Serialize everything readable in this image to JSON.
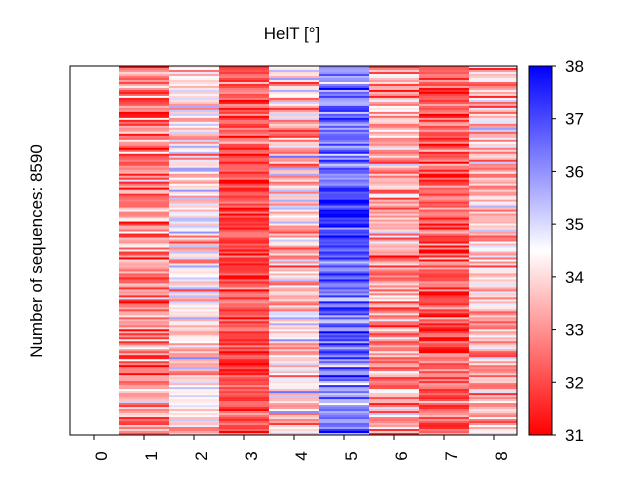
{
  "chart_data": {
    "type": "heatmap",
    "title": "HelT [°]",
    "xlabel": "",
    "ylabel": "Number of sequences: 8590",
    "x_tick_labels": [
      "0",
      "1",
      "2",
      "3",
      "4",
      "5",
      "6",
      "7",
      "8"
    ],
    "columns_with_data": [
      "1",
      "2",
      "3",
      "4",
      "5",
      "6",
      "7",
      "8"
    ],
    "n_sequences": 8590,
    "colorbar": {
      "min": 31,
      "max": 38,
      "ticks": [
        "31",
        "32",
        "33",
        "34",
        "35",
        "36",
        "37",
        "38"
      ],
      "colors": [
        "#ff0000",
        "#ffffff",
        "#0000ff"
      ],
      "center": 34.5
    },
    "column_profiles": [
      {
        "position": "1",
        "mean": 32.8,
        "spread": 1.4
      },
      {
        "position": "2",
        "mean": 34.2,
        "spread": 1.3
      },
      {
        "position": "3",
        "mean": 32.0,
        "spread": 0.9
      },
      {
        "position": "4",
        "mean": 34.0,
        "spread": 1.5
      },
      {
        "position": "5",
        "mean": 36.3,
        "spread": 1.2
      },
      {
        "position": "6",
        "mean": 33.2,
        "spread": 1.3
      },
      {
        "position": "7",
        "mean": 32.2,
        "spread": 1.1
      },
      {
        "position": "8",
        "mean": 33.6,
        "spread": 1.4
      }
    ],
    "grid": false,
    "legend": "colorbar-right"
  }
}
